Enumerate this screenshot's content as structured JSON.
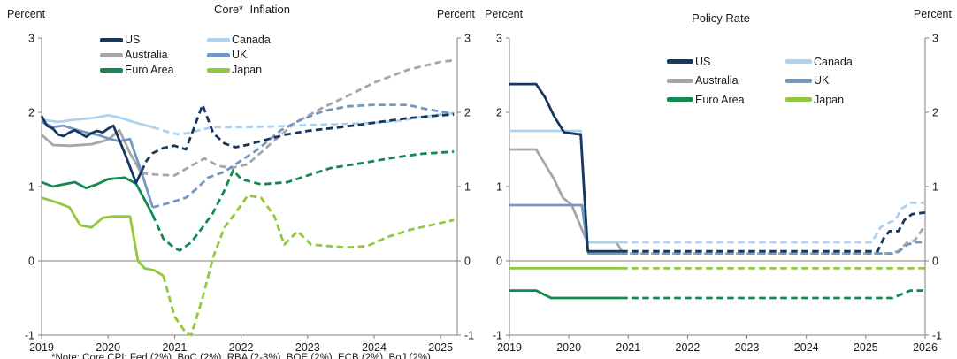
{
  "footnote": "*Note: Core CPI; Fed (2%), BoC (2%), RBA (2-3%), BOE (2%), ECB (2%), BoJ (2%)",
  "colors": {
    "us": "#17375E",
    "canada": "#ADD2EF",
    "australia": "#A6A6A6",
    "uk": "#7396C5",
    "euro_area": "#128A4F",
    "japan": "#92C83E",
    "axis": "#808080",
    "text": "#1A1A1A"
  },
  "chart_data": [
    {
      "type": "line",
      "title": "Core*  Inflation",
      "percent_label": "Percent",
      "x_range": [
        2019,
        2025.25
      ],
      "y_range": [
        -1,
        3
      ],
      "x_ticks": [
        2019,
        2020,
        2021,
        2022,
        2023,
        2024,
        2025
      ],
      "y_ticks": [
        3,
        2,
        1,
        0,
        -1
      ],
      "zero_line": true,
      "legend_columns": [
        [
          "US",
          "Australia",
          "Euro Area"
        ],
        [
          "Canada",
          "UK",
          "Japan"
        ]
      ],
      "dashed_segments_meaning": "forecast",
      "series": [
        {
          "name": "Japan",
          "color": "#92C83E",
          "solid_until": 2020.83,
          "points": [
            [
              2019.0,
              0.85
            ],
            [
              2019.25,
              0.78
            ],
            [
              2019.42,
              0.72
            ],
            [
              2019.58,
              0.48
            ],
            [
              2019.75,
              0.45
            ],
            [
              2019.92,
              0.58
            ],
            [
              2020.08,
              0.6
            ],
            [
              2020.33,
              0.6
            ],
            [
              2020.45,
              0.0
            ],
            [
              2020.55,
              -0.1
            ],
            [
              2020.7,
              -0.13
            ],
            [
              2020.83,
              -0.2
            ],
            [
              2021.0,
              -0.75
            ],
            [
              2021.17,
              -0.97
            ],
            [
              2021.25,
              -1.0
            ],
            [
              2021.42,
              -0.5
            ],
            [
              2021.58,
              0.05
            ],
            [
              2021.75,
              0.45
            ],
            [
              2021.92,
              0.65
            ],
            [
              2022.1,
              0.88
            ],
            [
              2022.3,
              0.85
            ],
            [
              2022.5,
              0.6
            ],
            [
              2022.65,
              0.22
            ],
            [
              2022.85,
              0.4
            ],
            [
              2023.05,
              0.22
            ],
            [
              2023.3,
              0.2
            ],
            [
              2023.6,
              0.18
            ],
            [
              2023.9,
              0.2
            ],
            [
              2024.2,
              0.32
            ],
            [
              2024.55,
              0.42
            ],
            [
              2024.85,
              0.48
            ],
            [
              2025.2,
              0.55
            ]
          ]
        },
        {
          "name": "Euro Area",
          "color": "#128A4F",
          "solid_until": 2020.67,
          "points": [
            [
              2019.0,
              1.06
            ],
            [
              2019.17,
              1.0
            ],
            [
              2019.33,
              1.03
            ],
            [
              2019.5,
              1.06
            ],
            [
              2019.67,
              0.98
            ],
            [
              2019.83,
              1.03
            ],
            [
              2020.0,
              1.1
            ],
            [
              2020.25,
              1.12
            ],
            [
              2020.42,
              1.04
            ],
            [
              2020.67,
              0.62
            ],
            [
              2020.83,
              0.3
            ],
            [
              2021.0,
              0.17
            ],
            [
              2021.08,
              0.14
            ],
            [
              2021.25,
              0.25
            ],
            [
              2021.42,
              0.45
            ],
            [
              2021.58,
              0.65
            ],
            [
              2021.75,
              0.95
            ],
            [
              2021.88,
              1.22
            ],
            [
              2022.0,
              1.1
            ],
            [
              2022.3,
              1.03
            ],
            [
              2022.7,
              1.06
            ],
            [
              2023.0,
              1.15
            ],
            [
              2023.35,
              1.25
            ],
            [
              2023.85,
              1.32
            ],
            [
              2024.3,
              1.39
            ],
            [
              2024.7,
              1.44
            ],
            [
              2025.2,
              1.47
            ]
          ]
        },
        {
          "name": "Australia",
          "color": "#A6A6A6",
          "solid_until": 2020.5,
          "points": [
            [
              2019.0,
              1.7
            ],
            [
              2019.17,
              1.56
            ],
            [
              2019.42,
              1.55
            ],
            [
              2019.75,
              1.57
            ],
            [
              2020.0,
              1.63
            ],
            [
              2020.17,
              1.76
            ],
            [
              2020.33,
              1.45
            ],
            [
              2020.5,
              1.18
            ],
            [
              2020.75,
              1.16
            ],
            [
              2021.0,
              1.15
            ],
            [
              2021.25,
              1.28
            ],
            [
              2021.45,
              1.38
            ],
            [
              2021.65,
              1.28
            ],
            [
              2021.85,
              1.25
            ],
            [
              2022.1,
              1.3
            ],
            [
              2022.45,
              1.58
            ],
            [
              2022.8,
              1.85
            ],
            [
              2023.2,
              2.05
            ],
            [
              2023.6,
              2.22
            ],
            [
              2024.0,
              2.4
            ],
            [
              2024.5,
              2.57
            ],
            [
              2025.0,
              2.68
            ],
            [
              2025.2,
              2.7
            ]
          ]
        },
        {
          "name": "Canada",
          "color": "#ADD2EF",
          "solid_until": 2020.67,
          "points": [
            [
              2019.0,
              1.9
            ],
            [
              2019.25,
              1.87
            ],
            [
              2019.5,
              1.9
            ],
            [
              2019.75,
              1.92
            ],
            [
              2020.0,
              1.96
            ],
            [
              2020.17,
              1.93
            ],
            [
              2020.42,
              1.86
            ],
            [
              2020.67,
              1.8
            ],
            [
              2020.92,
              1.73
            ],
            [
              2021.08,
              1.7
            ],
            [
              2021.25,
              1.73
            ],
            [
              2021.42,
              1.77
            ],
            [
              2021.58,
              1.8
            ],
            [
              2022.0,
              1.8
            ],
            [
              2022.5,
              1.81
            ],
            [
              2023.0,
              1.83
            ],
            [
              2023.5,
              1.84
            ],
            [
              2024.0,
              1.86
            ],
            [
              2024.33,
              1.88
            ],
            [
              2024.67,
              1.93
            ],
            [
              2025.0,
              1.97
            ],
            [
              2025.2,
              1.99
            ]
          ]
        },
        {
          "name": "UK",
          "color": "#7396C5",
          "solid_until": 2020.67,
          "points": [
            [
              2019.0,
              1.87
            ],
            [
              2019.17,
              1.8
            ],
            [
              2019.33,
              1.82
            ],
            [
              2019.5,
              1.77
            ],
            [
              2019.67,
              1.73
            ],
            [
              2019.83,
              1.7
            ],
            [
              2020.0,
              1.65
            ],
            [
              2020.17,
              1.61
            ],
            [
              2020.33,
              1.64
            ],
            [
              2020.5,
              1.2
            ],
            [
              2020.67,
              0.72
            ],
            [
              2020.92,
              0.78
            ],
            [
              2021.17,
              0.85
            ],
            [
              2021.33,
              0.97
            ],
            [
              2021.5,
              1.12
            ],
            [
              2021.75,
              1.2
            ],
            [
              2022.0,
              1.35
            ],
            [
              2022.25,
              1.5
            ],
            [
              2022.6,
              1.76
            ],
            [
              2022.9,
              1.9
            ],
            [
              2023.25,
              2.02
            ],
            [
              2023.6,
              2.08
            ],
            [
              2024.0,
              2.1
            ],
            [
              2024.5,
              2.1
            ],
            [
              2024.8,
              2.04
            ],
            [
              2025.2,
              1.98
            ]
          ]
        },
        {
          "name": "US",
          "color": "#17375E",
          "solid_until": 2020.5,
          "points": [
            [
              2019.0,
              1.95
            ],
            [
              2019.08,
              1.82
            ],
            [
              2019.17,
              1.78
            ],
            [
              2019.25,
              1.7
            ],
            [
              2019.33,
              1.68
            ],
            [
              2019.42,
              1.73
            ],
            [
              2019.5,
              1.76
            ],
            [
              2019.58,
              1.72
            ],
            [
              2019.67,
              1.67
            ],
            [
              2019.75,
              1.72
            ],
            [
              2019.83,
              1.75
            ],
            [
              2019.92,
              1.73
            ],
            [
              2020.0,
              1.78
            ],
            [
              2020.08,
              1.82
            ],
            [
              2020.25,
              1.45
            ],
            [
              2020.42,
              1.05
            ],
            [
              2020.5,
              1.2
            ],
            [
              2020.58,
              1.35
            ],
            [
              2020.67,
              1.45
            ],
            [
              2020.83,
              1.52
            ],
            [
              2021.0,
              1.55
            ],
            [
              2021.17,
              1.5
            ],
            [
              2021.42,
              2.1
            ],
            [
              2021.58,
              1.72
            ],
            [
              2021.75,
              1.58
            ],
            [
              2021.92,
              1.53
            ],
            [
              2022.08,
              1.56
            ],
            [
              2022.33,
              1.62
            ],
            [
              2022.67,
              1.7
            ],
            [
              2023.0,
              1.75
            ],
            [
              2023.5,
              1.8
            ],
            [
              2024.0,
              1.86
            ],
            [
              2024.5,
              1.92
            ],
            [
              2025.0,
              1.96
            ],
            [
              2025.2,
              1.97
            ]
          ]
        }
      ]
    },
    {
      "type": "line",
      "title": "Policy Rate",
      "percent_label": "Percent",
      "x_range": [
        2019,
        2026
      ],
      "y_range": [
        -1,
        3
      ],
      "x_ticks": [
        2019,
        2020,
        2021,
        2022,
        2023,
        2024,
        2025,
        2026
      ],
      "y_ticks": [
        3,
        2,
        1,
        0,
        -1
      ],
      "zero_line": true,
      "legend_columns": [
        [
          "US",
          "Australia",
          "Euro Area"
        ],
        [
          "Canada",
          "UK",
          "Japan"
        ]
      ],
      "dashed_segments_meaning": "forecast",
      "series": [
        {
          "name": "Japan",
          "color": "#92C83E",
          "solid_until": 2020.88,
          "points": [
            [
              2019.0,
              -0.1
            ],
            [
              2026.0,
              -0.1
            ]
          ]
        },
        {
          "name": "Euro Area",
          "color": "#128A4F",
          "solid_until": 2020.88,
          "points": [
            [
              2019.0,
              -0.4
            ],
            [
              2019.45,
              -0.4
            ],
            [
              2019.7,
              -0.5
            ],
            [
              2025.45,
              -0.5
            ],
            [
              2025.6,
              -0.45
            ],
            [
              2025.75,
              -0.4
            ],
            [
              2026.0,
              -0.4
            ]
          ]
        },
        {
          "name": "Australia",
          "color": "#A6A6A6",
          "solid_until": 2020.88,
          "points": [
            [
              2019.0,
              1.5
            ],
            [
              2019.45,
              1.5
            ],
            [
              2019.6,
              1.3
            ],
            [
              2019.75,
              1.1
            ],
            [
              2019.9,
              0.85
            ],
            [
              2020.05,
              0.75
            ],
            [
              2020.3,
              0.27
            ],
            [
              2020.35,
              0.25
            ],
            [
              2020.8,
              0.25
            ],
            [
              2020.92,
              0.1
            ],
            [
              2025.4,
              0.1
            ],
            [
              2025.55,
              0.13
            ],
            [
              2025.7,
              0.25
            ],
            [
              2025.82,
              0.27
            ],
            [
              2026.0,
              0.48
            ]
          ]
        },
        {
          "name": "Canada",
          "color": "#ADD2EF",
          "solid_until": 2020.88,
          "points": [
            [
              2019.0,
              1.75
            ],
            [
              2020.2,
              1.75
            ],
            [
              2020.3,
              0.25
            ],
            [
              2025.1,
              0.25
            ],
            [
              2025.25,
              0.45
            ],
            [
              2025.35,
              0.5
            ],
            [
              2025.5,
              0.55
            ],
            [
              2025.6,
              0.7
            ],
            [
              2025.75,
              0.78
            ],
            [
              2026.0,
              0.78
            ]
          ]
        },
        {
          "name": "UK",
          "color": "#7396C5",
          "solid_until": 2020.88,
          "points": [
            [
              2019.0,
              0.75
            ],
            [
              2020.22,
              0.75
            ],
            [
              2020.33,
              0.1
            ],
            [
              2025.45,
              0.1
            ],
            [
              2025.55,
              0.12
            ],
            [
              2025.7,
              0.22
            ],
            [
              2025.85,
              0.25
            ],
            [
              2026.0,
              0.25
            ]
          ]
        },
        {
          "name": "US",
          "color": "#17375E",
          "solid_until": 2020.88,
          "points": [
            [
              2019.0,
              2.38
            ],
            [
              2019.45,
              2.38
            ],
            [
              2019.6,
              2.2
            ],
            [
              2019.75,
              1.95
            ],
            [
              2019.92,
              1.73
            ],
            [
              2020.2,
              1.7
            ],
            [
              2020.32,
              0.13
            ],
            [
              2025.2,
              0.13
            ],
            [
              2025.3,
              0.3
            ],
            [
              2025.4,
              0.4
            ],
            [
              2025.55,
              0.4
            ],
            [
              2025.65,
              0.55
            ],
            [
              2025.78,
              0.63
            ],
            [
              2026.0,
              0.65
            ]
          ]
        }
      ]
    }
  ]
}
